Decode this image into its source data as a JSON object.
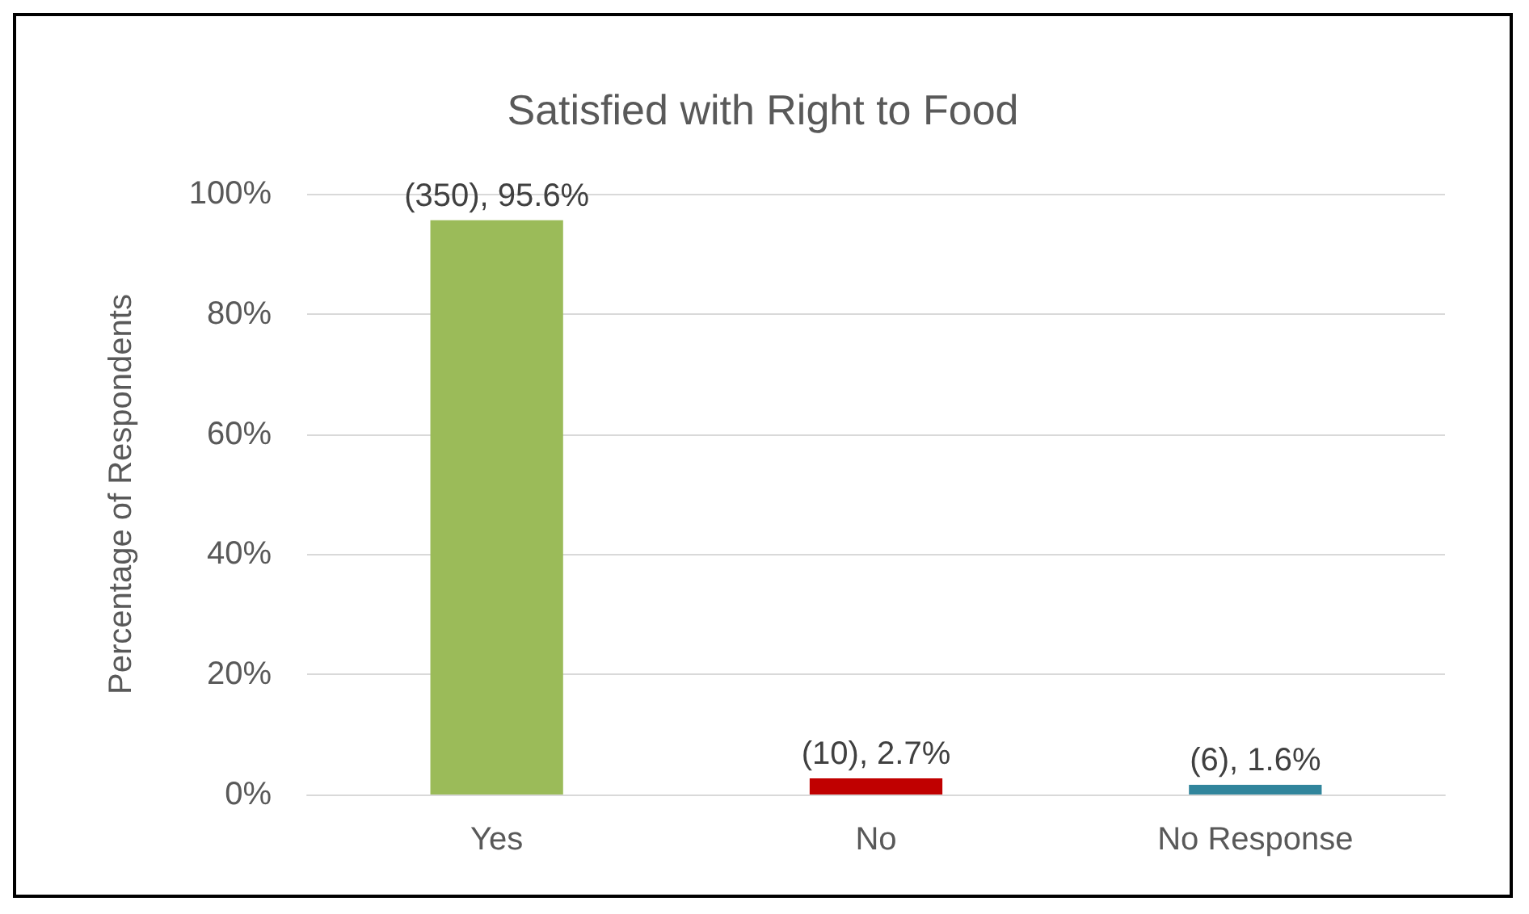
{
  "chart_data": {
    "type": "bar",
    "title": "Satisfied with Right to Food",
    "ylabel": "Percentage of Respondents",
    "categories": [
      "Yes",
      "No",
      "No Response"
    ],
    "values": [
      95.6,
      2.7,
      1.6
    ],
    "colors": [
      "#9bbb59",
      "#c00000",
      "#31859c"
    ],
    "value_labels": [
      "(350), 95.6%",
      "(10), 2.7%",
      "(6), 1.6%"
    ],
    "ylim": [
      0,
      100
    ],
    "yticks": [
      {
        "value": 0,
        "label": "0%"
      },
      {
        "value": 20,
        "label": "20%"
      },
      {
        "value": 40,
        "label": "40%"
      },
      {
        "value": 60,
        "label": "60%"
      },
      {
        "value": 80,
        "label": "80%"
      },
      {
        "value": 100,
        "label": "100%"
      }
    ],
    "grid": "y"
  }
}
